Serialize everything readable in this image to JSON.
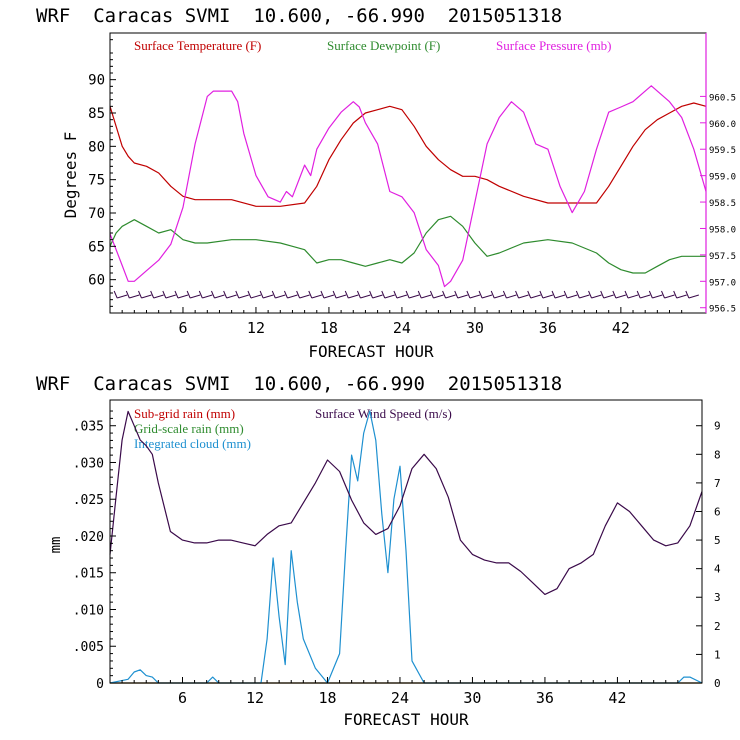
{
  "colors": {
    "temp": "#c00000",
    "dew": "#2e8b2e",
    "pres": "#e020e0",
    "wind": "#3a0a4a",
    "cloud": "#1e90d0",
    "axis": "#000000"
  },
  "chart_data": [
    {
      "type": "line",
      "title": "WRF  Caracas SVMI  10.600, -66.990  2015051318",
      "xlabel": "FORECAST HOUR",
      "ylabel": "Degrees F",
      "xlim": [
        0,
        49
      ],
      "ylim": [
        55,
        97
      ],
      "ylim_right": [
        956.4,
        961.7
      ],
      "x_ticks": [
        6,
        12,
        18,
        24,
        30,
        36,
        42
      ],
      "y_ticks": [
        60,
        65,
        70,
        75,
        80,
        85,
        90
      ],
      "y_ticks_right": [
        "956.5",
        "957.0",
        "957.5",
        "958.0",
        "958.5",
        "959.0",
        "959.5",
        "960.0",
        "960.5"
      ],
      "legend": "top",
      "series": [
        {
          "name": "Surface Temperature (F)",
          "axis": "left",
          "x": [
            0,
            0.5,
            1,
            1.5,
            2,
            3,
            4,
            5,
            6,
            7,
            8,
            10,
            12,
            14,
            16,
            17,
            18,
            19,
            20,
            21,
            22,
            23,
            24,
            25,
            26,
            27,
            28,
            29,
            30,
            31,
            32,
            34,
            36,
            38,
            40,
            41,
            42,
            43,
            44,
            45,
            46,
            47,
            48,
            49
          ],
          "values": [
            86,
            83,
            80,
            78.5,
            77.5,
            77,
            76,
            74,
            72.5,
            72,
            72,
            72,
            71,
            71,
            71.5,
            74,
            78,
            81,
            83.5,
            85,
            85.5,
            86,
            85.5,
            83,
            80,
            78,
            76.5,
            75.5,
            75.5,
            75,
            74,
            72.5,
            71.5,
            71.5,
            71.5,
            74,
            77,
            80,
            82.5,
            84,
            85,
            86,
            86.5,
            86
          ]
        },
        {
          "name": "Surface Dewpoint (F)",
          "axis": "left",
          "x": [
            0,
            0.5,
            1,
            2,
            3,
            4,
            5,
            6,
            7,
            8,
            10,
            12,
            14,
            15,
            16,
            17,
            18,
            19,
            20,
            21,
            22,
            23,
            24,
            25,
            26,
            27,
            28,
            29,
            30,
            31,
            32,
            34,
            36,
            38,
            40,
            41,
            42,
            43,
            44,
            45,
            46,
            47,
            48,
            49
          ],
          "values": [
            65,
            67,
            68,
            69,
            68,
            67,
            67.5,
            66,
            65.5,
            65.5,
            66,
            66,
            65.5,
            65,
            64.5,
            62.5,
            63,
            63,
            62.5,
            62,
            62.5,
            63,
            62.5,
            64,
            67,
            69,
            69.5,
            68,
            65.5,
            63.5,
            64,
            65.5,
            66,
            65.5,
            64,
            62.5,
            61.5,
            61,
            61,
            62,
            63,
            63.5,
            63.5,
            63.5
          ]
        },
        {
          "name": "Surface Pressure (mb)",
          "axis": "right",
          "x": [
            0,
            0.5,
            1,
            1.5,
            2,
            3,
            4,
            5,
            6,
            7,
            8,
            8.5,
            9,
            10,
            10.5,
            11,
            12,
            13,
            14,
            14.5,
            15,
            16,
            16.5,
            17,
            18,
            19,
            20,
            20.5,
            21,
            22,
            23,
            24,
            25,
            26,
            27,
            27.5,
            28,
            29,
            30,
            31,
            32,
            33,
            34,
            35,
            36,
            37,
            38,
            39,
            40,
            41,
            42,
            43,
            44,
            44.5,
            45,
            46,
            47,
            48,
            49
          ],
          "values": [
            957.9,
            957.6,
            957.3,
            957.0,
            957.0,
            957.2,
            957.4,
            957.7,
            958.4,
            959.6,
            960.5,
            960.6,
            960.6,
            960.6,
            960.4,
            959.8,
            959.0,
            958.6,
            958.5,
            958.7,
            958.6,
            959.2,
            959.0,
            959.5,
            959.9,
            960.2,
            960.4,
            960.3,
            960.0,
            959.6,
            958.7,
            958.6,
            958.3,
            957.6,
            957.3,
            956.9,
            957.0,
            957.4,
            958.5,
            959.6,
            960.1,
            960.4,
            960.2,
            959.6,
            959.5,
            958.8,
            958.3,
            958.7,
            959.5,
            960.2,
            960.3,
            960.4,
            960.6,
            960.7,
            960.6,
            960.4,
            960.1,
            959.5,
            958.7
          ]
        }
      ]
    },
    {
      "type": "line",
      "title": "WRF  Caracas SVMI  10.600, -66.990  2015051318",
      "xlabel": "FORECAST HOUR",
      "ylabel": "mm",
      "xlim": [
        0,
        49
      ],
      "ylim": [
        0,
        0.0385
      ],
      "ylim_right": [
        0,
        9.9
      ],
      "x_ticks": [
        6,
        12,
        18,
        24,
        30,
        36,
        42
      ],
      "y_ticks": [
        ".035",
        ".030",
        ".025",
        ".020",
        ".015",
        ".010",
        ".005",
        "0"
      ],
      "y_tick_values": [
        0.035,
        0.03,
        0.025,
        0.02,
        0.015,
        0.01,
        0.005,
        0
      ],
      "y_ticks_right": [
        "9",
        "8",
        "7",
        "6",
        "5",
        "4",
        "3",
        "2",
        "1",
        "0"
      ],
      "y_tick_values_right": [
        9,
        8,
        7,
        6,
        5,
        4,
        3,
        2,
        1,
        0
      ],
      "legend": "top-left",
      "series": [
        {
          "name": "Sub-grid rain (mm)",
          "axis": "left",
          "x": [
            0,
            49
          ],
          "values": [
            0,
            0
          ]
        },
        {
          "name": "Grid-scale rain (mm)",
          "axis": "left",
          "x": [
            0,
            49
          ],
          "values": [
            0,
            0
          ]
        },
        {
          "name": "Integrated cloud (mm)",
          "axis": "left",
          "x": [
            0,
            1.5,
            2,
            2.5,
            3,
            3.5,
            4,
            5,
            8,
            8.5,
            9,
            12.5,
            13,
            13.5,
            14,
            14.5,
            15,
            15.5,
            16,
            17,
            18,
            19,
            19.5,
            20,
            20.5,
            21,
            21.5,
            22,
            22.5,
            23,
            23.5,
            24,
            24.5,
            25,
            26,
            47,
            47.5,
            48,
            49
          ],
          "values": [
            0,
            0.0005,
            0.0015,
            0.0018,
            0.001,
            0.0008,
            0,
            0,
            0,
            0.0008,
            0,
            0,
            0.006,
            0.017,
            0.009,
            0.0025,
            0.018,
            0.011,
            0.006,
            0.002,
            0,
            0.004,
            0.018,
            0.031,
            0.0275,
            0.034,
            0.037,
            0.033,
            0.023,
            0.015,
            0.025,
            0.0295,
            0.018,
            0.003,
            0,
            0,
            0.0008,
            0.0008,
            0
          ]
        },
        {
          "name": "Surface Wind Speed (m/s)",
          "axis": "right",
          "x": [
            0,
            0.5,
            1,
            1.5,
            2,
            2.5,
            3,
            3.5,
            4,
            5,
            6,
            7,
            8,
            9,
            10,
            11,
            12,
            13,
            14,
            15,
            16,
            17,
            18,
            19,
            20,
            21,
            22,
            23,
            24,
            25,
            26,
            27,
            28,
            29,
            30,
            31,
            32,
            33,
            34,
            35,
            36,
            37,
            38,
            39,
            40,
            41,
            42,
            43,
            44,
            45,
            46,
            47,
            48,
            49
          ],
          "values": [
            4.5,
            6.5,
            8.5,
            9.5,
            9.0,
            8.5,
            8.3,
            8.0,
            7.0,
            5.3,
            5.0,
            4.9,
            4.9,
            5.0,
            5.0,
            4.9,
            4.8,
            5.2,
            5.5,
            5.6,
            6.3,
            7.0,
            7.8,
            7.4,
            6.4,
            5.6,
            5.2,
            5.4,
            6.2,
            7.5,
            8.0,
            7.5,
            6.5,
            5.0,
            4.5,
            4.3,
            4.2,
            4.2,
            3.9,
            3.5,
            3.1,
            3.3,
            4.0,
            4.2,
            4.5,
            5.5,
            6.3,
            6.0,
            5.5,
            5.0,
            4.8,
            4.9,
            5.5,
            6.7
          ]
        }
      ]
    }
  ]
}
